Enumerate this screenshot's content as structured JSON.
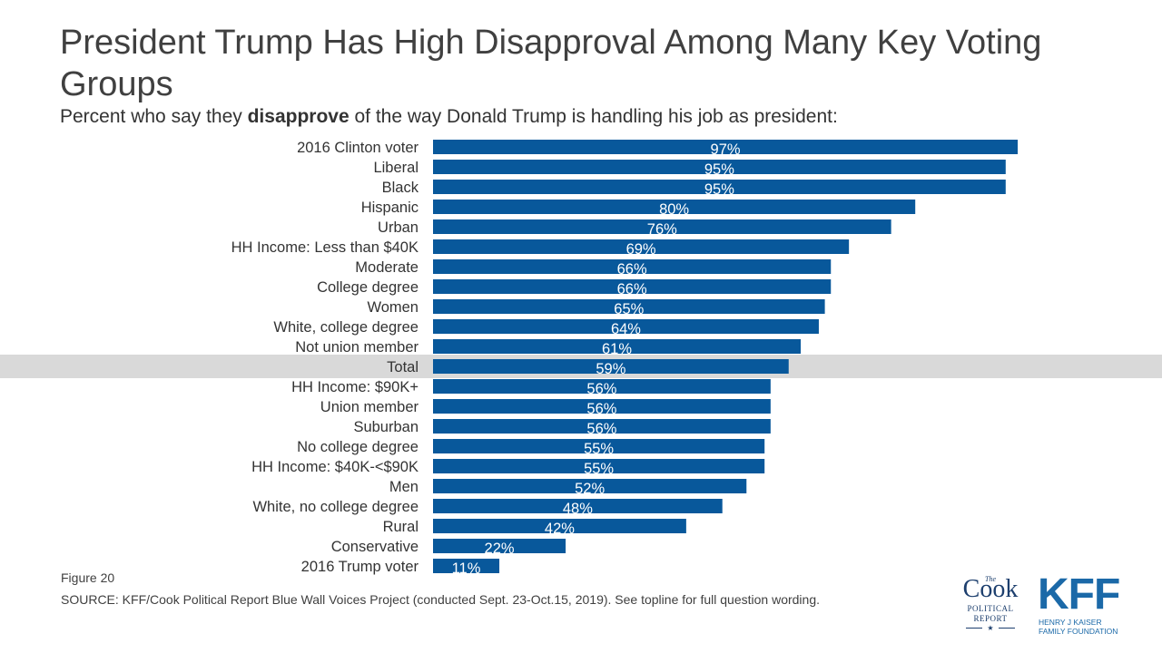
{
  "title": "President Trump Has High Disapproval Among Many Key Voting Groups",
  "subtitle": {
    "before": "Percent who say they ",
    "bold": "disapprove",
    "after": " of the way Donald Trump is handling his job as president:"
  },
  "chart_data": {
    "type": "bar",
    "orientation": "horizontal",
    "categories": [
      "2016 Clinton voter",
      "Liberal",
      "Black",
      "Hispanic",
      "Urban",
      "HH Income: Less than $40K",
      "Moderate",
      "College degree",
      "Women",
      "White, college degree",
      "Not union member",
      "Total",
      "HH Income: $90K+",
      "Union member",
      "Suburban",
      "No college degree",
      "HH Income: $40K-<$90K",
      "Men",
      "White, no college degree",
      "Rural",
      "Conservative",
      "2016 Trump voter"
    ],
    "values": [
      97,
      95,
      95,
      80,
      76,
      69,
      66,
      66,
      65,
      64,
      61,
      59,
      56,
      56,
      56,
      55,
      55,
      52,
      48,
      42,
      22,
      11
    ],
    "value_labels": [
      "97%",
      "95%",
      "95%",
      "80%",
      "76%",
      "69%",
      "66%",
      "66%",
      "65%",
      "64%",
      "61%",
      "59%",
      "56%",
      "56%",
      "56%",
      "55%",
      "55%",
      "52%",
      "48%",
      "42%",
      "22%",
      "11%"
    ],
    "highlighted_category": "Total",
    "bar_color": "#08589b",
    "highlight_band_color": "#d9d9d9",
    "xlim": [
      0,
      100
    ],
    "grid": false,
    "legend": "none"
  },
  "footer": {
    "figure": "Figure 20",
    "source": "SOURCE: KFF/Cook Political Report Blue Wall Voices Project (conducted Sept. 23-Oct.15, 2019). See topline for full question wording."
  },
  "logos": {
    "cook": {
      "the": "The",
      "name": "Cook",
      "line1": "POLITICAL",
      "line2": "REPORT",
      "star": "★"
    },
    "kff": {
      "name": "KFF",
      "line1": "HENRY J KAISER",
      "line2": "FAMILY FOUNDATION"
    }
  }
}
